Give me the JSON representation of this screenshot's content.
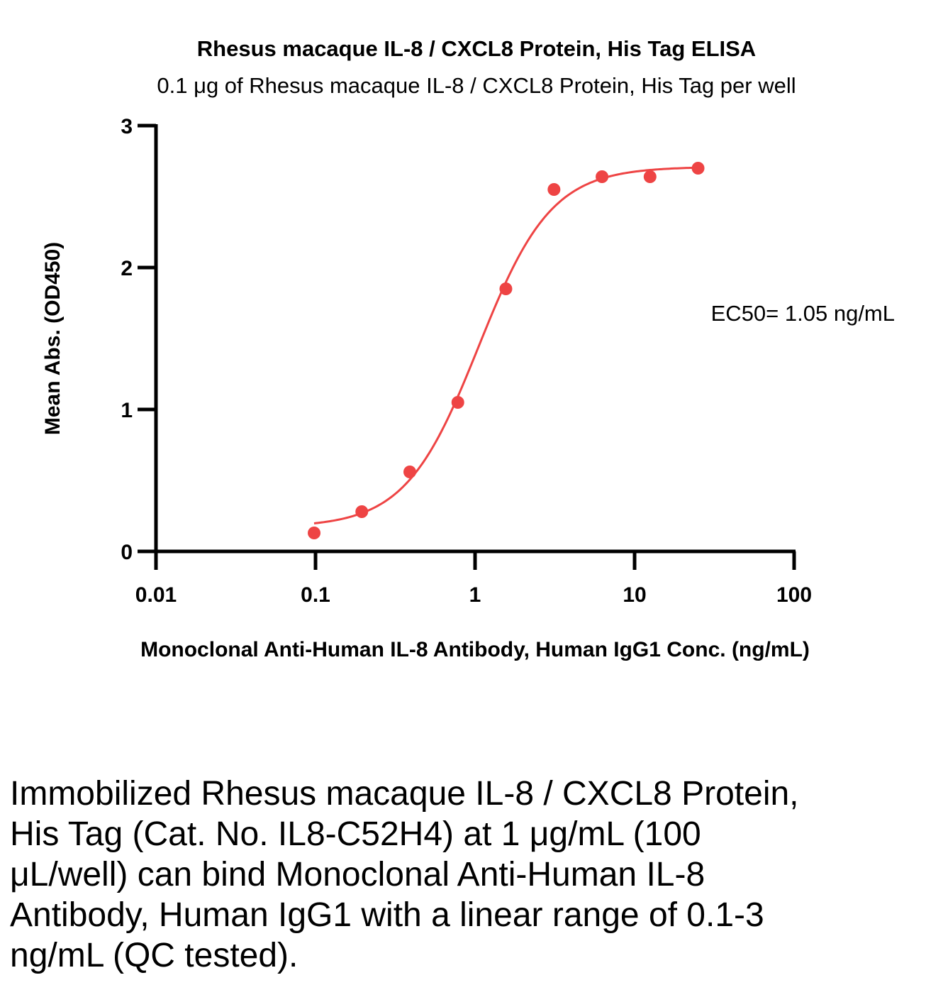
{
  "chart_data": {
    "type": "scatter",
    "title": "Rhesus macaque IL-8 / CXCL8 Protein, His Tag ELISA",
    "subtitle": "0.1 μg of Rhesus macaque IL-8 / CXCL8 Protein, His Tag per well",
    "xlabel": "Monoclonal Anti-Human IL-8 Antibody, Human IgG1 Conc. (ng/mL)",
    "ylabel": "Mean Abs. (OD450)",
    "x_scale": "log",
    "xlim": [
      0.01,
      100
    ],
    "ylim": [
      0,
      3
    ],
    "x_ticks": [
      0.01,
      0.1,
      1,
      10,
      100
    ],
    "x_tick_labels": [
      "0.01",
      "0.1",
      "1",
      "10",
      "100"
    ],
    "y_ticks": [
      0,
      1,
      2,
      3
    ],
    "y_tick_labels": [
      "0",
      "1",
      "2",
      "3"
    ],
    "grid": false,
    "legend": "none",
    "series_color": "#ee4444",
    "points": {
      "x": [
        0.098,
        0.195,
        0.39,
        0.78,
        1.56,
        3.125,
        6.25,
        12.5,
        25
      ],
      "y": [
        0.13,
        0.28,
        0.56,
        1.05,
        1.85,
        2.55,
        2.64,
        2.64,
        2.7
      ]
    },
    "fit": {
      "model": "4PL",
      "bottom": 0.17,
      "top": 2.71,
      "ec50": 1.05,
      "hill": 1.9,
      "x_range": [
        0.098,
        25
      ]
    },
    "annotation": "EC50= 1.05 ng/mL"
  },
  "caption": "Immobilized Rhesus macaque IL-8 / CXCL8 Protein, His Tag (Cat. No. IL8-C52H4) at 1 μg/mL (100 μL/well) can bind Monoclonal Anti-Human IL-8 Antibody, Human IgG1 with a linear range of 0.1-3 ng/mL (QC tested)."
}
